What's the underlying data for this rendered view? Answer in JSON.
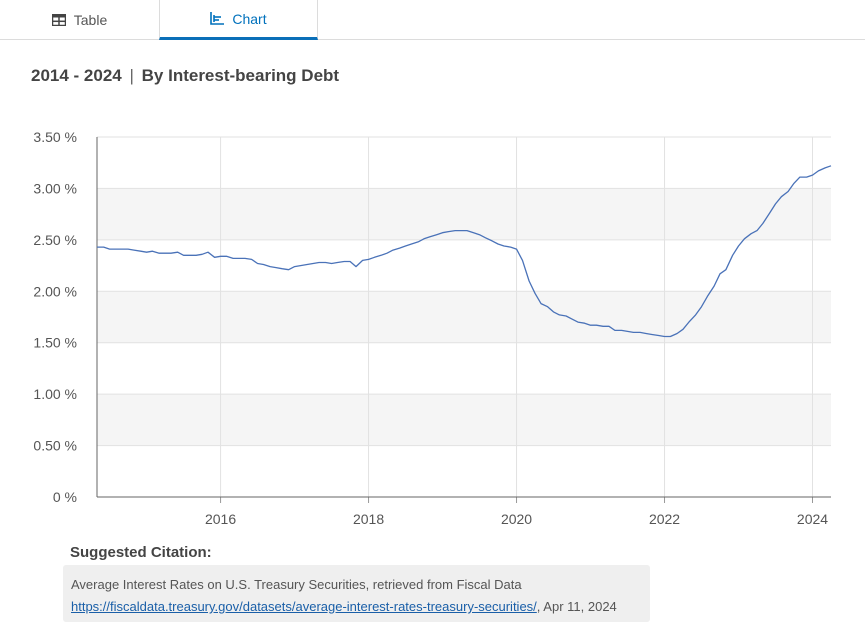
{
  "tabs": [
    {
      "label": "Table",
      "icon": "table-icon",
      "active": false
    },
    {
      "label": "Chart",
      "icon": "chart-icon",
      "active": true
    }
  ],
  "heading": {
    "range": "2014 - 2024",
    "separator": "|",
    "subtitle": "By Interest-bearing Debt"
  },
  "colors": {
    "accent": "#0a6fb8",
    "line": "#4a72b8"
  },
  "chart_data": {
    "type": "line",
    "title": "2014 - 2024 | By Interest-bearing Debt",
    "xlabel": "",
    "ylabel": "",
    "xlim": [
      2014.33,
      2024.25
    ],
    "ylim": [
      0,
      3.5
    ],
    "x_ticks": [
      2016,
      2018,
      2020,
      2022,
      2024
    ],
    "x_tick_labels": [
      "2016",
      "2018",
      "2020",
      "2022",
      "2024"
    ],
    "y_ticks": [
      0,
      0.5,
      1.0,
      1.5,
      2.0,
      2.5,
      3.0,
      3.5
    ],
    "y_tick_labels": [
      "0 %",
      "0.50 %",
      "1.00 %",
      "1.50 %",
      "2.00 %",
      "2.50 %",
      "3.00 %",
      "3.50 %"
    ],
    "grid": true,
    "series": [
      {
        "name": "Interest-bearing Debt",
        "x": [
          2014.33,
          2014.42,
          2014.5,
          2014.58,
          2014.67,
          2014.75,
          2014.83,
          2014.92,
          2015.0,
          2015.08,
          2015.17,
          2015.25,
          2015.33,
          2015.42,
          2015.5,
          2015.58,
          2015.67,
          2015.75,
          2015.83,
          2015.92,
          2016.0,
          2016.08,
          2016.17,
          2016.25,
          2016.33,
          2016.42,
          2016.5,
          2016.58,
          2016.67,
          2016.75,
          2016.83,
          2016.92,
          2017.0,
          2017.08,
          2017.17,
          2017.25,
          2017.33,
          2017.42,
          2017.5,
          2017.58,
          2017.67,
          2017.75,
          2017.83,
          2017.92,
          2018.0,
          2018.08,
          2018.17,
          2018.25,
          2018.33,
          2018.42,
          2018.5,
          2018.58,
          2018.67,
          2018.75,
          2018.83,
          2018.92,
          2019.0,
          2019.08,
          2019.17,
          2019.25,
          2019.33,
          2019.42,
          2019.5,
          2019.58,
          2019.67,
          2019.75,
          2019.83,
          2019.92,
          2020.0,
          2020.08,
          2020.17,
          2020.25,
          2020.33,
          2020.42,
          2020.5,
          2020.58,
          2020.67,
          2020.75,
          2020.83,
          2020.92,
          2021.0,
          2021.08,
          2021.17,
          2021.25,
          2021.33,
          2021.42,
          2021.5,
          2021.58,
          2021.67,
          2021.75,
          2021.83,
          2021.92,
          2022.0,
          2022.08,
          2022.17,
          2022.25,
          2022.33,
          2022.42,
          2022.5,
          2022.58,
          2022.67,
          2022.75,
          2022.83,
          2022.92,
          2023.0,
          2023.08,
          2023.17,
          2023.25,
          2023.33,
          2023.42,
          2023.5,
          2023.58,
          2023.67,
          2023.75,
          2023.83,
          2023.92,
          2024.0,
          2024.08,
          2024.17,
          2024.25
        ],
        "values": [
          2.43,
          2.43,
          2.41,
          2.41,
          2.41,
          2.41,
          2.4,
          2.39,
          2.38,
          2.39,
          2.37,
          2.37,
          2.37,
          2.38,
          2.35,
          2.35,
          2.35,
          2.36,
          2.38,
          2.33,
          2.34,
          2.34,
          2.32,
          2.32,
          2.32,
          2.31,
          2.27,
          2.26,
          2.24,
          2.23,
          2.22,
          2.21,
          2.24,
          2.25,
          2.26,
          2.27,
          2.28,
          2.28,
          2.27,
          2.28,
          2.29,
          2.29,
          2.24,
          2.3,
          2.31,
          2.33,
          2.35,
          2.37,
          2.4,
          2.42,
          2.44,
          2.46,
          2.48,
          2.51,
          2.53,
          2.55,
          2.57,
          2.58,
          2.59,
          2.59,
          2.59,
          2.57,
          2.55,
          2.52,
          2.49,
          2.46,
          2.44,
          2.43,
          2.41,
          2.3,
          2.1,
          1.98,
          1.88,
          1.85,
          1.8,
          1.77,
          1.76,
          1.73,
          1.7,
          1.69,
          1.67,
          1.67,
          1.66,
          1.66,
          1.62,
          1.62,
          1.61,
          1.6,
          1.6,
          1.59,
          1.58,
          1.57,
          1.56,
          1.56,
          1.59,
          1.63,
          1.7,
          1.77,
          1.85,
          1.95,
          2.05,
          2.17,
          2.21,
          2.35,
          2.44,
          2.51,
          2.56,
          2.59,
          2.66,
          2.76,
          2.85,
          2.92,
          2.97,
          3.05,
          3.11,
          3.11,
          3.13,
          3.17,
          3.2,
          3.22
        ]
      }
    ]
  },
  "citation": {
    "title": "Suggested Citation:",
    "text": "Average Interest Rates on U.S. Treasury Securities, retrieved from Fiscal Data",
    "url": "https://fiscaldata.treasury.gov/datasets/average-interest-rates-treasury-securities/",
    "date_suffix": ", Apr 11, 2024"
  }
}
